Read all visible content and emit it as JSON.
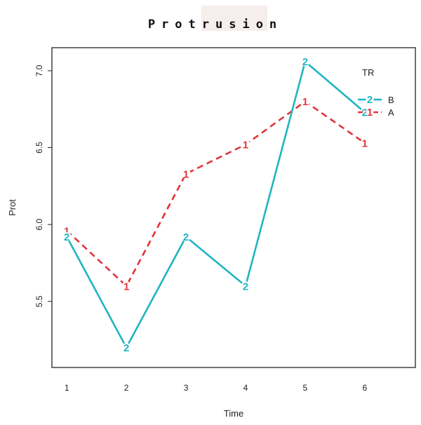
{
  "chart_data": {
    "type": "line",
    "title": "Protrusion",
    "xlabel": "Time",
    "ylabel": "Prot",
    "x": [
      1,
      2,
      3,
      4,
      5,
      6
    ],
    "x_tick_labels": [
      "1",
      "2",
      "3",
      "4",
      "5",
      "6"
    ],
    "y_ticks": [
      5.5,
      6.0,
      6.5,
      7.0
    ],
    "y_tick_labels": [
      "5.5",
      "6.0",
      "6.5",
      "7.0"
    ],
    "xlim": [
      0.75,
      6.85
    ],
    "ylim": [
      5.07,
      7.15
    ],
    "grid": false,
    "legend": {
      "title": "TR",
      "placement": "top-right"
    },
    "series": [
      {
        "name": "B",
        "marker": "2",
        "color": "#1fb5c1",
        "line_style": "solid",
        "values": [
          5.92,
          5.2,
          5.92,
          5.6,
          7.06,
          6.73
        ]
      },
      {
        "name": "A",
        "marker": "1",
        "color": "#e0363a",
        "line_style": "dashed",
        "values": [
          5.96,
          5.6,
          6.33,
          6.52,
          6.8,
          6.53
        ]
      }
    ]
  }
}
